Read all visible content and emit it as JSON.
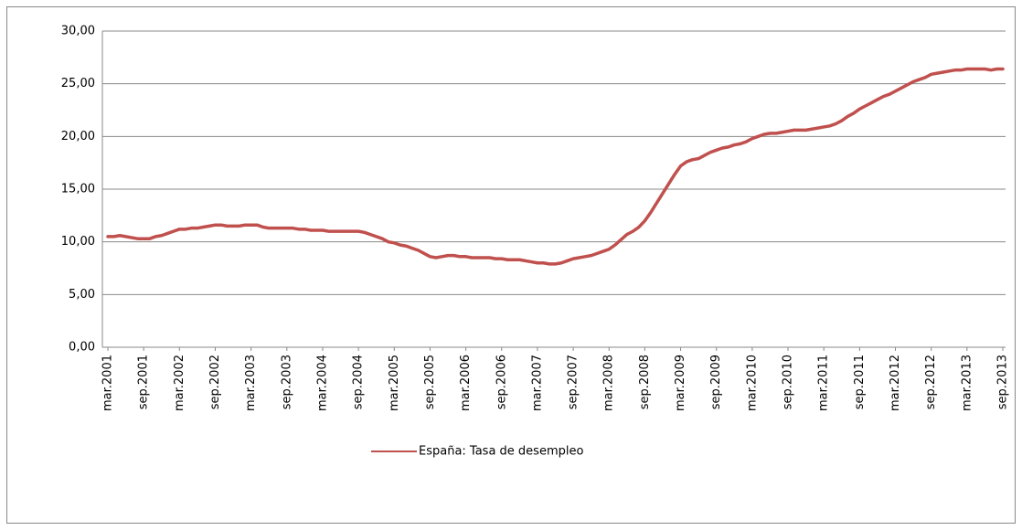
{
  "chart_data": {
    "type": "line",
    "categories": [
      "mar.2001",
      null,
      null,
      null,
      null,
      null,
      "sep.2001",
      null,
      null,
      null,
      null,
      null,
      "mar.2002",
      null,
      null,
      null,
      null,
      null,
      "sep.2002",
      null,
      null,
      null,
      null,
      null,
      "mar.2003",
      null,
      null,
      null,
      null,
      null,
      "sep.2003",
      null,
      null,
      null,
      null,
      null,
      "mar.2004",
      null,
      null,
      null,
      null,
      null,
      "sep.2004",
      null,
      null,
      null,
      null,
      null,
      "mar.2005",
      null,
      null,
      null,
      null,
      null,
      "sep.2005",
      null,
      null,
      null,
      null,
      null,
      "mar.2006",
      null,
      null,
      null,
      null,
      null,
      "sep.2006",
      null,
      null,
      null,
      null,
      null,
      "mar.2007",
      null,
      null,
      null,
      null,
      null,
      "sep.2007",
      null,
      null,
      null,
      null,
      null,
      "mar.2008",
      null,
      null,
      null,
      null,
      null,
      "sep.2008",
      null,
      null,
      null,
      null,
      null,
      "mar.2009",
      null,
      null,
      null,
      null,
      null,
      "sep.2009",
      null,
      null,
      null,
      null,
      null,
      "mar.2010",
      null,
      null,
      null,
      null,
      null,
      "sep.2010",
      null,
      null,
      null,
      null,
      null,
      "mar.2011",
      null,
      null,
      null,
      null,
      null,
      "sep.2011",
      null,
      null,
      null,
      null,
      null,
      "mar.2012",
      null,
      null,
      null,
      null,
      null,
      "sep.2012",
      null,
      null,
      null,
      null,
      null,
      "mar.2013",
      null,
      null,
      null,
      null,
      null,
      "sep.2013"
    ],
    "series": [
      {
        "name": "España: Tasa de desempleo",
        "color": "#c0504d",
        "values": [
          10.5,
          10.5,
          10.6,
          10.5,
          10.4,
          10.3,
          10.3,
          10.3,
          10.5,
          10.6,
          10.8,
          11.0,
          11.2,
          11.2,
          11.3,
          11.3,
          11.4,
          11.5,
          11.6,
          11.6,
          11.5,
          11.5,
          11.5,
          11.6,
          11.6,
          11.6,
          11.4,
          11.3,
          11.3,
          11.3,
          11.3,
          11.3,
          11.2,
          11.2,
          11.1,
          11.1,
          11.1,
          11.0,
          11.0,
          11.0,
          11.0,
          11.0,
          11.0,
          10.9,
          10.7,
          10.5,
          10.3,
          10.0,
          9.9,
          9.7,
          9.6,
          9.4,
          9.2,
          8.9,
          8.6,
          8.5,
          8.6,
          8.7,
          8.7,
          8.6,
          8.6,
          8.5,
          8.5,
          8.5,
          8.5,
          8.4,
          8.4,
          8.3,
          8.3,
          8.3,
          8.2,
          8.1,
          8.0,
          8.0,
          7.9,
          7.9,
          8.0,
          8.2,
          8.4,
          8.5,
          8.6,
          8.7,
          8.9,
          9.1,
          9.3,
          9.7,
          10.2,
          10.7,
          11.0,
          11.4,
          12.0,
          12.8,
          13.7,
          14.6,
          15.5,
          16.4,
          17.2,
          17.6,
          17.8,
          17.9,
          18.2,
          18.5,
          18.7,
          18.9,
          19.0,
          19.2,
          19.3,
          19.5,
          19.8,
          20.0,
          20.2,
          20.3,
          20.3,
          20.4,
          20.5,
          20.6,
          20.6,
          20.6,
          20.7,
          20.8,
          20.9,
          21.0,
          21.2,
          21.5,
          21.9,
          22.2,
          22.6,
          22.9,
          23.2,
          23.5,
          23.8,
          24.0,
          24.3,
          24.6,
          24.9,
          25.2,
          25.4,
          25.6,
          25.9,
          26.0,
          26.1,
          26.2,
          26.3,
          26.3,
          26.4,
          26.4,
          26.4,
          26.4,
          26.3,
          26.4,
          26.4
        ]
      }
    ],
    "ylim": [
      0,
      30
    ],
    "yticks": [
      {
        "value": 0,
        "label": "0,00"
      },
      {
        "value": 5,
        "label": "5,00"
      },
      {
        "value": 10,
        "label": "10,00"
      },
      {
        "value": 15,
        "label": "15,00"
      },
      {
        "value": 20,
        "label": "20,00"
      },
      {
        "value": 25,
        "label": "25,00"
      },
      {
        "value": 30,
        "label": "30,00"
      }
    ],
    "grid": true,
    "legend": "bottom"
  }
}
